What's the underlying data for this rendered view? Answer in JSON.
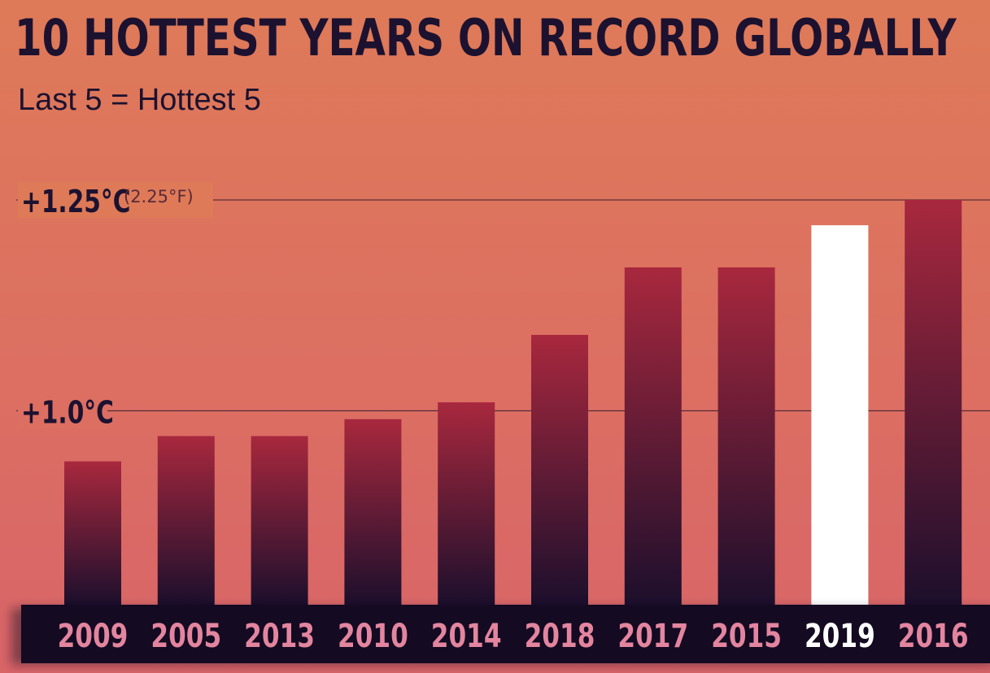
{
  "title": "10 HOTTEST YEARS ON RECORD GLOBALLY",
  "subtitle": "Last 5 = Hottest 5",
  "colors": {
    "bar_top": "#a8283e",
    "bar_bottom": "#1c0f2c",
    "highlight_bar": "#ffffff",
    "label_band": "#140a22",
    "year_label": "#e3859f",
    "highlight_label": "#ffffff",
    "gridline": "#3a1c2c"
  },
  "chart_data": {
    "type": "bar",
    "title": "10 HOTTEST YEARS ON RECORD GLOBALLY",
    "subtitle": "Last 5 = Hottest 5",
    "categories": [
      "2009",
      "2005",
      "2013",
      "2010",
      "2014",
      "2018",
      "2017",
      "2015",
      "2019",
      "2016"
    ],
    "values": [
      0.94,
      0.97,
      0.97,
      0.99,
      1.01,
      1.09,
      1.17,
      1.17,
      1.22,
      1.25
    ],
    "highlight": "2019",
    "ylim": [
      0.77,
      1.25
    ],
    "gridlines": [
      {
        "value": 1.25,
        "label": "+1.25°C",
        "sublabel": "(2.25°F)"
      },
      {
        "value": 1.0,
        "label": "+1.0°C",
        "sublabel": ""
      }
    ],
    "xlabel": "",
    "ylabel": "",
    "grid": true,
    "legend": "none"
  }
}
